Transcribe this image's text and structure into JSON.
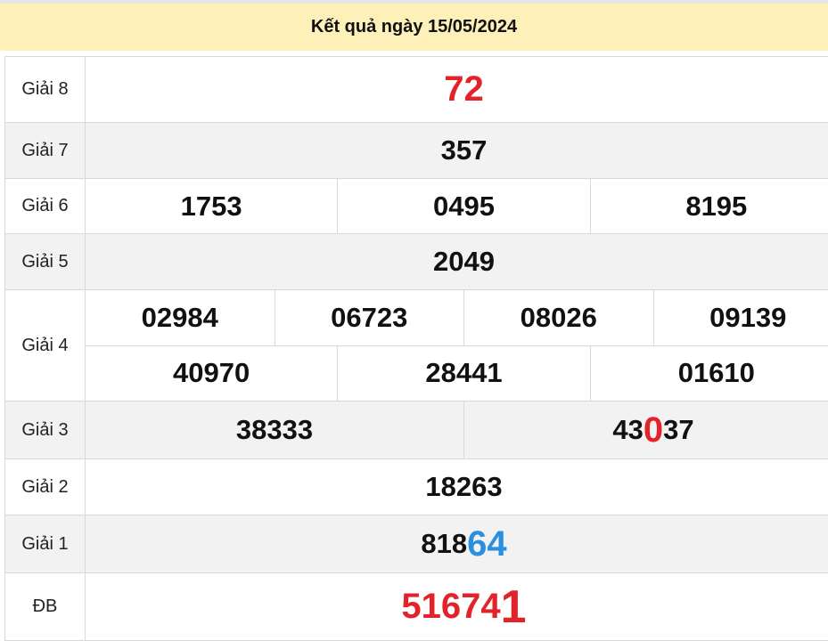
{
  "title": "Kết quả ngày 15/05/2024",
  "colors": {
    "header_bg": "#fdf0b9",
    "red": "#e2232a",
    "blue": "#2b8fe0"
  },
  "prizes": [
    {
      "label": "Giải 8",
      "numbers": [
        "72"
      ]
    },
    {
      "label": "Giải 7",
      "numbers": [
        "357"
      ]
    },
    {
      "label": "Giải 6",
      "numbers": [
        "1753",
        "0495",
        "8195"
      ]
    },
    {
      "label": "Giải 5",
      "numbers": [
        "2049"
      ]
    },
    {
      "label": "Giải 4",
      "numbers": [
        "02984",
        "06723",
        "08026",
        "09139",
        "40970",
        "28441",
        "01610"
      ]
    },
    {
      "label": "Giải 3",
      "numbers": [
        {
          "a": "43",
          "b": "0",
          "c": "37",
          "full": "43037"
        },
        "38333"
      ]
    },
    {
      "label": "Giải 2",
      "numbers": [
        "18263"
      ]
    },
    {
      "label": "Giải 1",
      "numbers": [
        {
          "a": "818",
          "b": "64"
        }
      ]
    },
    {
      "label": "ĐB",
      "numbers": [
        {
          "a": "51674",
          "b": "1"
        }
      ]
    }
  ]
}
